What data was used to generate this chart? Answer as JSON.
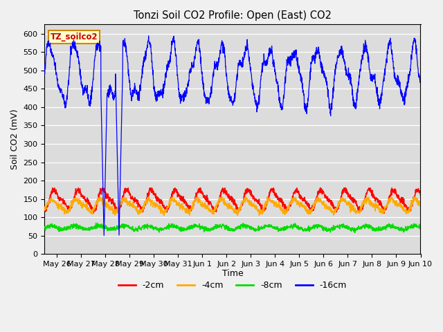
{
  "title": "Tonzi Soil CO2 Profile: Open (East) CO2",
  "ylabel": "Soil CO2 (mV)",
  "xlabel": "Time",
  "ylim": [
    0,
    625
  ],
  "yticks": [
    0,
    50,
    100,
    150,
    200,
    250,
    300,
    350,
    400,
    450,
    500,
    550,
    600
  ],
  "bg_color": "#dcdcdc",
  "fig_color": "#f0f0f0",
  "legend_label": "TZ_soilco2",
  "legend_box_color": "#ffffcc",
  "legend_box_edge": "#cc8800",
  "line_colors": {
    "m2cm": "#ff0000",
    "m4cm": "#ffaa00",
    "m8cm": "#00dd00",
    "m16cm": "#0000ff"
  },
  "legend_items": [
    {
      "label": "-2cm",
      "color": "#ff0000"
    },
    {
      "label": "-4cm",
      "color": "#ffaa00"
    },
    {
      "label": "-8cm",
      "color": "#00dd00"
    },
    {
      "label": "-16cm",
      "color": "#0000ff"
    }
  ],
  "n_points": 2000,
  "start_day": 25.5,
  "end_day": 41.0,
  "x_tick_days": [
    26,
    27,
    28,
    29,
    30,
    31,
    32,
    33,
    34,
    35,
    36,
    37,
    38,
    39,
    40,
    41
  ],
  "x_tick_labels": [
    "May 26",
    "May 27",
    "May 28",
    "May 29",
    "May 30",
    "May 31",
    "Jun 1",
    "Jun 2",
    "Jun 3",
    "Jun 4",
    "Jun 5",
    "Jun 6",
    "Jun 7",
    "Jun 8",
    "Jun 9",
    "Jun 10"
  ]
}
